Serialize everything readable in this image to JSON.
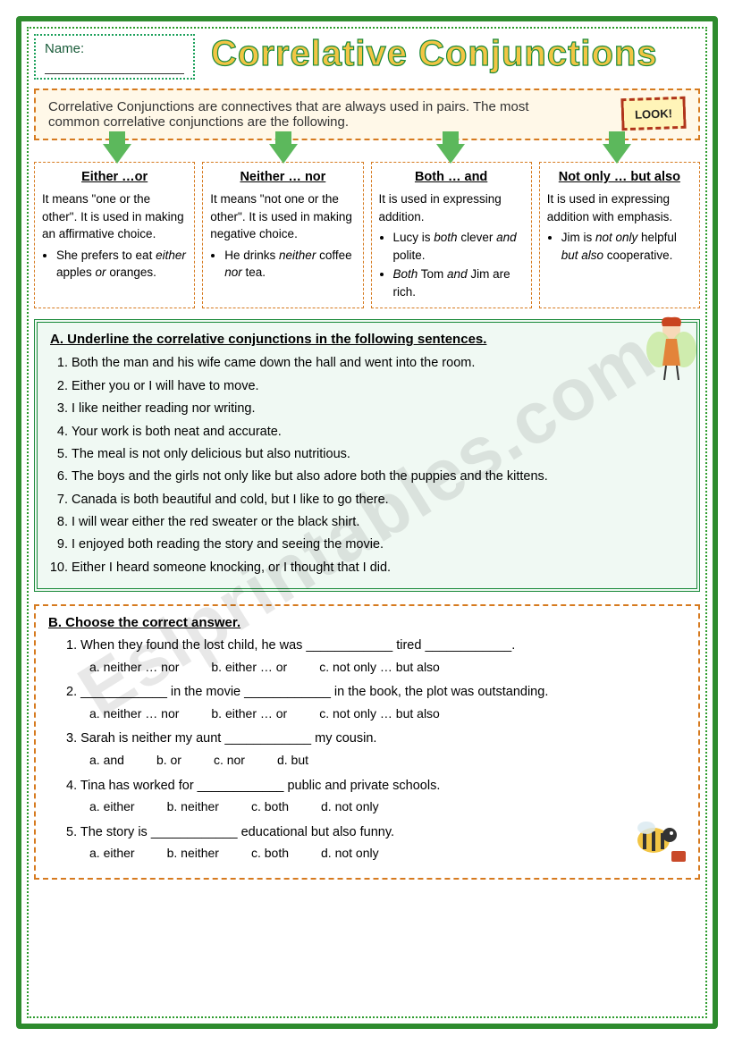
{
  "name_label": "Name:",
  "title": "Correlative Conjunctions",
  "intro": "Correlative Conjunctions are connectives that are always used in pairs. The most common correlative conjunctions are the following.",
  "look_label": "LOOK!",
  "conjunctions": [
    {
      "heading": "Either …or",
      "desc": "It means \"one or the other\". It is used in making an affirmative choice.",
      "examples": [
        "She prefers to eat <em>either</em> apples <em>or</em> oranges."
      ]
    },
    {
      "heading": "Neither … nor",
      "desc": "It means \"not one or the other\". It is used in making negative choice.",
      "examples": [
        "He drinks <em>neither</em> coffee <em>nor</em> tea."
      ]
    },
    {
      "heading": "Both … and",
      "desc": "It is used in expressing addition.",
      "examples": [
        "Lucy is <em>both</em> clever <em>and</em> polite.",
        "<em>Both</em> Tom <em>and</em> Jim are rich."
      ]
    },
    {
      "heading": "Not only … but also",
      "desc": "It is used in expressing addition with emphasis.",
      "examples": [
        "Jim is <em>not only</em> helpful <em>but also</em> cooperative."
      ]
    }
  ],
  "section_a": {
    "head": "A.  Underline the correlative conjunctions in the following sentences.",
    "items": [
      "Both the man and his wife came down the hall and went into the room.",
      "Either you or I will have to move.",
      "I like neither reading nor writing.",
      "Your work is both neat and accurate.",
      "The meal is not only delicious but also nutritious.",
      "The boys and the girls not only like but also adore both the puppies and the kittens.",
      "Canada is both beautiful and cold, but I like to go there.",
      "I will wear either the red sweater or the black shirt.",
      "I enjoyed both reading the story and seeing the movie.",
      "Either I heard someone knocking, or I thought that I did."
    ]
  },
  "section_b": {
    "head": "B.  Choose the correct answer.",
    "questions": [
      {
        "text": "When they found the lost child, he was ____________ tired ____________.",
        "opts": [
          "a. neither … nor",
          "b. either … or",
          "c. not only … but also"
        ]
      },
      {
        "text": "____________ in the movie ____________ in the book, the plot was outstanding.",
        "opts": [
          "a. neither … nor",
          "b. either … or",
          "c. not only … but also"
        ]
      },
      {
        "text": "Sarah is neither my aunt ____________ my cousin.",
        "opts": [
          "a.  and",
          "b. or",
          "c. nor",
          "d. but"
        ]
      },
      {
        "text": "Tina has worked for ____________ public and private schools.",
        "opts": [
          "a.  either",
          "b. neither",
          "c. both",
          "d. not only"
        ]
      },
      {
        "text": "The story is ____________ educational but also funny.",
        "opts": [
          "a.  either",
          "b. neither",
          "c. both",
          "d. not only"
        ]
      }
    ]
  },
  "watermark": "Eslprintables.com"
}
